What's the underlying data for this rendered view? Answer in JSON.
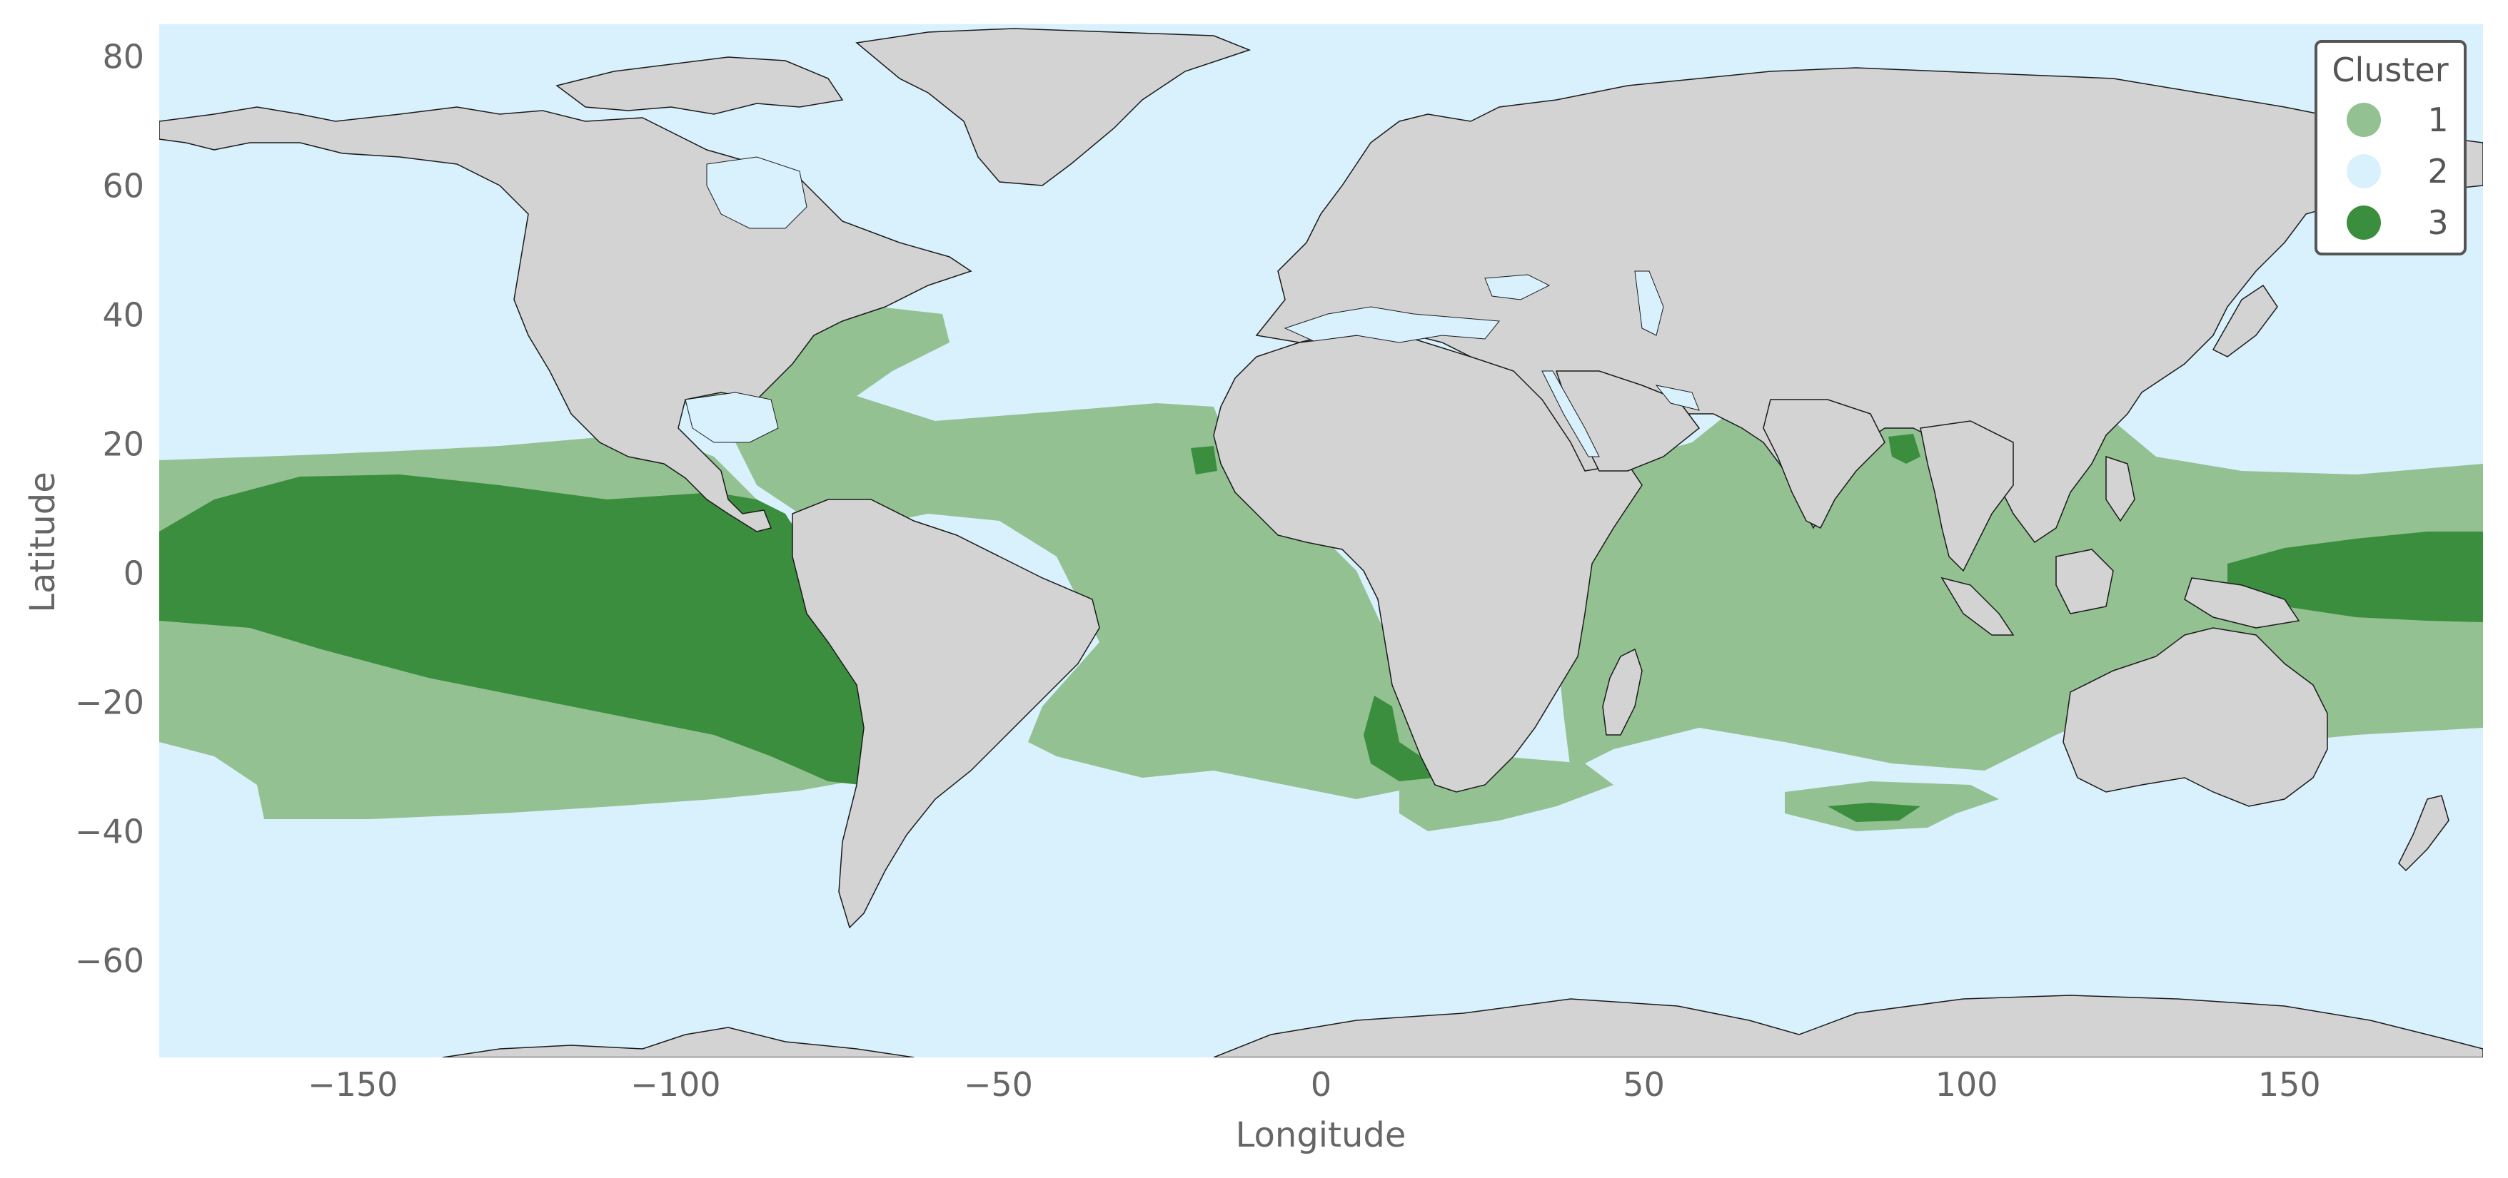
{
  "chart_data": {
    "type": "map",
    "projection": "plate-carree",
    "xlabel": "Longitude",
    "ylabel": "Latitude",
    "xlim": [
      -180,
      180
    ],
    "ylim": [
      -75,
      85
    ],
    "xticks": [
      -150,
      -100,
      -50,
      0,
      50,
      100,
      150
    ],
    "yticks": [
      80,
      60,
      40,
      20,
      0,
      -20,
      -40,
      -60
    ],
    "grid": false,
    "legend": {
      "title": "Cluster",
      "placement": "top-right",
      "entries": [
        {
          "label": "1",
          "color": "#93c192"
        },
        {
          "label": "2",
          "color": "#d9f1fd"
        },
        {
          "label": "3",
          "color": "#3b8e3e"
        }
      ]
    },
    "colors": {
      "ocean_cluster_2": "#d9f1fd",
      "cluster_1": "#93c192",
      "cluster_3": "#3b8e3e",
      "land": "#d3d3d3",
      "border": "#1a1a1a"
    }
  }
}
